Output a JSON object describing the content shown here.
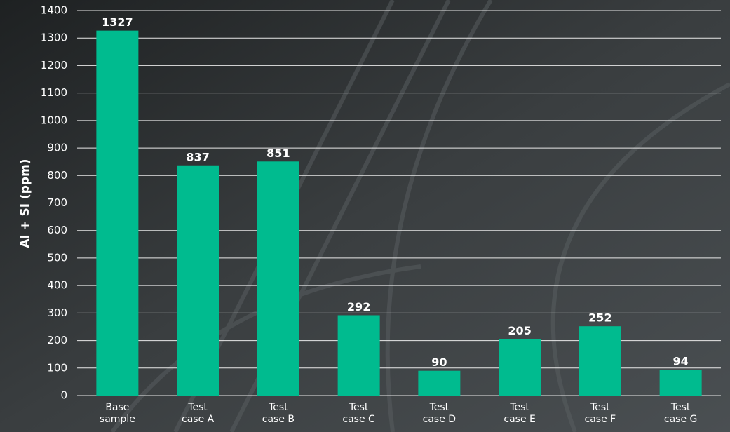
{
  "chart_data": {
    "type": "bar",
    "y_label": "Al + SI (ppm)",
    "categories": [
      "Base sample",
      "Test case A",
      "Test case B",
      "Test case C",
      "Test case D",
      "Test case E",
      "Test case F",
      "Test case G"
    ],
    "values": [
      1327,
      837,
      851,
      292,
      90,
      205,
      252,
      94
    ],
    "color": "#00bb8f",
    "ylim": [
      0,
      1400
    ],
    "yticks": [
      0,
      100,
      200,
      300,
      400,
      500,
      600,
      700,
      800,
      900,
      1000,
      1100,
      1200,
      1300,
      1400
    ],
    "grid": true
  }
}
